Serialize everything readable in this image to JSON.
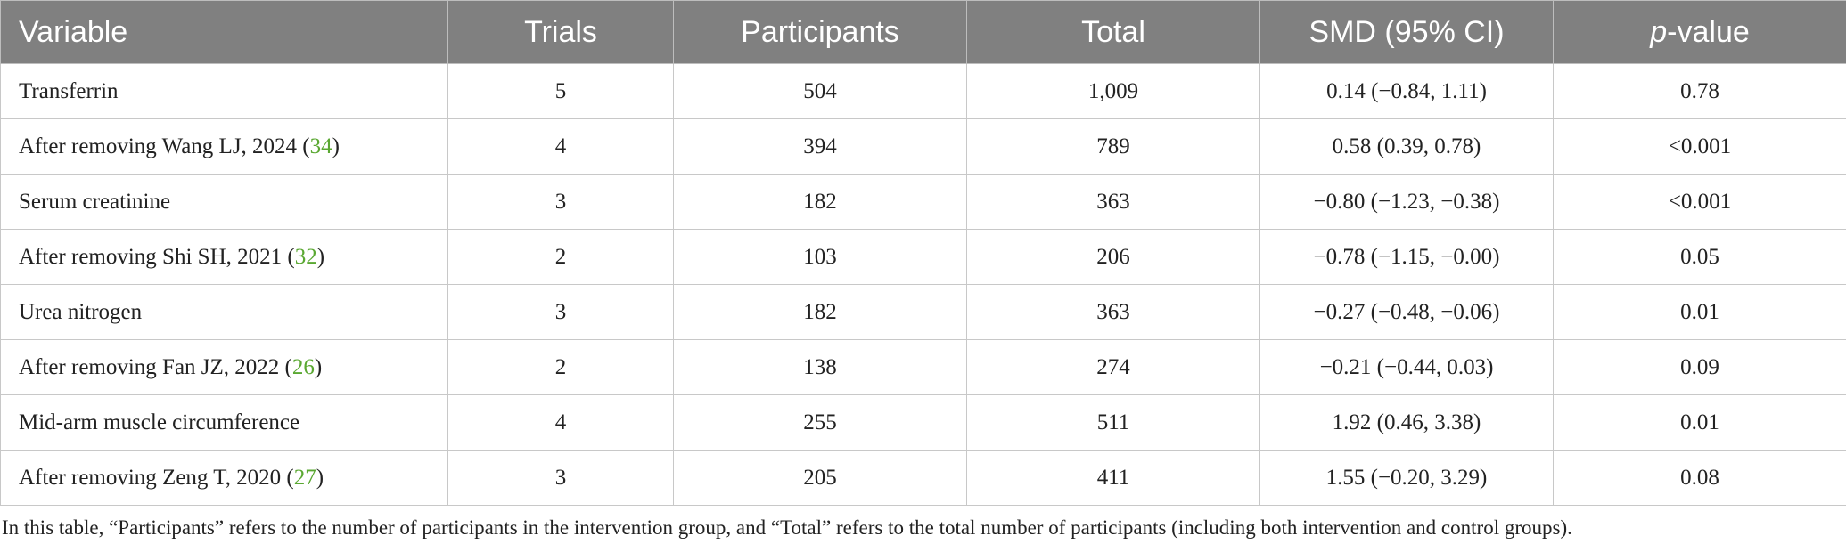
{
  "table": {
    "header": [
      "Variable",
      "Trials",
      "Participants",
      "Total",
      "SMD (95% CI)",
      {
        "italic": "p",
        "rest": "-value"
      }
    ],
    "rows": [
      [
        "Transferrin",
        "5",
        "504",
        "1,009",
        "0.14 (−0.84, 1.11)",
        "0.78"
      ],
      [
        {
          "text": "After removing Wang LJ, 2024 (",
          "ref": "34",
          "after": ")"
        },
        "4",
        "394",
        "789",
        "0.58 (0.39, 0.78)",
        "<0.001"
      ],
      [
        "Serum creatinine",
        "3",
        "182",
        "363",
        "−0.80 (−1.23, −0.38)",
        "<0.001"
      ],
      [
        {
          "text": "After removing Shi SH, 2021 (",
          "ref": "32",
          "after": ")"
        },
        "2",
        "103",
        "206",
        "−0.78 (−1.15, −0.00)",
        "0.05"
      ],
      [
        "Urea nitrogen",
        "3",
        "182",
        "363",
        "−0.27 (−0.48, −0.06)",
        "0.01"
      ],
      [
        {
          "text": "After removing Fan JZ, 2022 (",
          "ref": "26",
          "after": ")"
        },
        "2",
        "138",
        "274",
        "−0.21 (−0.44, 0.03)",
        "0.09"
      ],
      [
        "Mid-arm muscle circumference",
        "4",
        "255",
        "511",
        "1.92 (0.46, 3.38)",
        "0.01"
      ],
      [
        {
          "text": "After removing Zeng T, 2020 (",
          "ref": "27",
          "after": ")"
        },
        "3",
        "205",
        "411",
        "1.55 (−0.20, 3.29)",
        "0.08"
      ]
    ],
    "footnote": "In this table, “Participants” refers to the number of participants in the intervention group, and “Total” refers to the total number of participants (including both intervention and control groups)."
  }
}
